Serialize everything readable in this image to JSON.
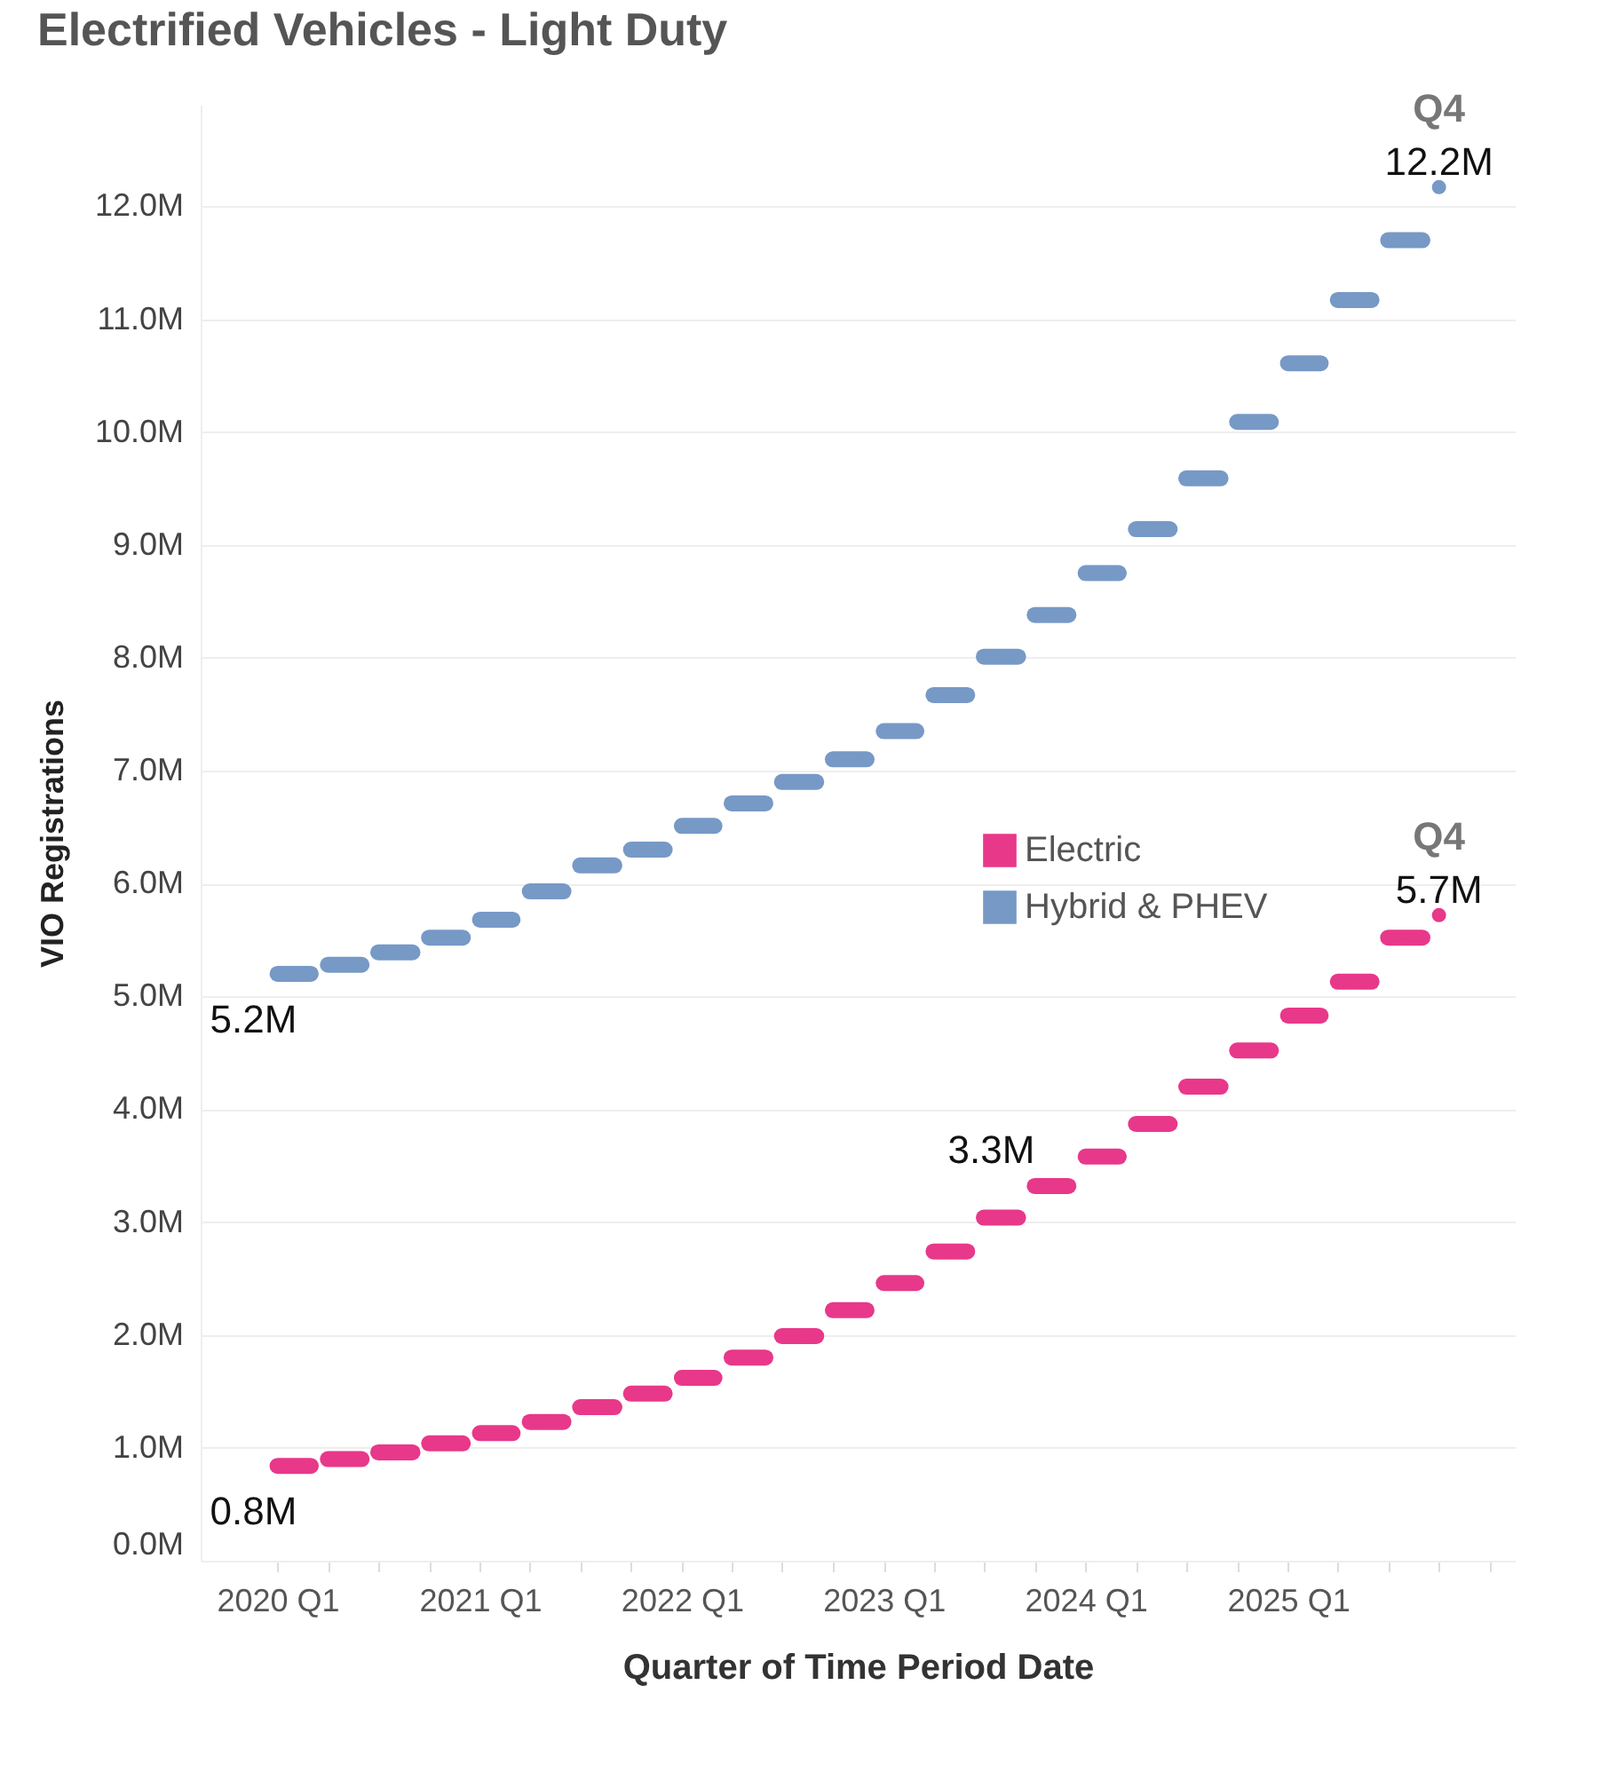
{
  "chart_data": {
    "type": "line",
    "title": "Electrified Vehicles - Light Duty",
    "xlabel": "Quarter of Time Period Date",
    "ylabel": "VIO Registrations",
    "x": [
      "2020-01",
      "2020-02",
      "2020-03",
      "2020-04",
      "2020-05",
      "2020-06",
      "2020-07",
      "2020-08",
      "2020-09",
      "2020-10",
      "2020-11",
      "2020-12",
      "2021-01",
      "2021-02",
      "2021-03",
      "2021-04",
      "2021-05",
      "2021-06",
      "2021-07",
      "2021-08",
      "2021-09",
      "2021-10",
      "2021-11",
      "2021-12",
      "2022-01",
      "2022-02",
      "2022-03",
      "2022-04",
      "2022-05",
      "2022-06",
      "2022-07",
      "2022-08",
      "2022-09",
      "2022-10",
      "2022-11",
      "2022-12",
      "2023-01",
      "2023-02",
      "2023-03",
      "2023-04",
      "2023-05",
      "2023-06",
      "2023-07",
      "2023-08",
      "2023-09",
      "2023-10",
      "2023-11",
      "2023-12",
      "2024-01",
      "2024-02",
      "2024-03",
      "2024-04",
      "2024-05",
      "2024-06",
      "2024-07",
      "2024-08",
      "2024-09",
      "2024-10",
      "2024-11",
      "2024-12",
      "2025-01",
      "2025-02",
      "2025-03",
      "2025-04",
      "2025-05",
      "2025-06",
      "2025-07",
      "2025-08",
      "2025-09"
    ],
    "series": [
      {
        "name": "Electric",
        "color": "#e8388a",
        "values": [
          0.84,
          0.84,
          0.84,
          0.9,
          0.9,
          0.9,
          0.96,
          0.96,
          0.96,
          1.04,
          1.04,
          1.04,
          1.13,
          1.13,
          1.13,
          1.23,
          1.23,
          1.23,
          1.36,
          1.36,
          1.36,
          1.48,
          1.48,
          1.48,
          1.62,
          1.62,
          1.62,
          1.8,
          1.8,
          1.8,
          1.99,
          1.99,
          1.99,
          2.22,
          2.22,
          2.22,
          2.46,
          2.46,
          2.46,
          2.74,
          2.74,
          2.74,
          3.04,
          3.04,
          3.04,
          3.32,
          3.32,
          3.32,
          3.58,
          3.58,
          3.58,
          3.87,
          3.87,
          3.87,
          4.2,
          4.2,
          4.2,
          4.52,
          4.52,
          4.52,
          4.83,
          4.83,
          4.83,
          5.13,
          5.13,
          5.13,
          5.52,
          5.52,
          5.52
        ]
      },
      {
        "name": "Hybrid & PHEV",
        "color": "#7799c6",
        "values": [
          5.2,
          5.2,
          5.2,
          5.28,
          5.28,
          5.28,
          5.39,
          5.39,
          5.39,
          5.52,
          5.52,
          5.52,
          5.68,
          5.68,
          5.68,
          5.93,
          5.93,
          5.93,
          6.16,
          6.16,
          6.16,
          6.3,
          6.3,
          6.3,
          6.51,
          6.51,
          6.51,
          6.71,
          6.71,
          6.71,
          6.9,
          6.9,
          6.9,
          7.1,
          7.1,
          7.1,
          7.35,
          7.35,
          7.35,
          7.67,
          7.67,
          7.67,
          8.01,
          8.01,
          8.01,
          8.38,
          8.38,
          8.38,
          8.75,
          8.75,
          8.75,
          9.14,
          9.14,
          9.14,
          9.59,
          9.59,
          9.59,
          10.09,
          10.09,
          10.09,
          10.61,
          10.61,
          10.61,
          11.17,
          11.17,
          11.17,
          11.7,
          11.7,
          11.7
        ]
      },
      {
        "type": "scatter",
        "color": "#e8388a",
        "x": [
          "2025-10"
        ],
        "values": [
          5.72
        ]
      },
      {
        "type": "scatter",
        "color": "#7799c6",
        "x": [
          "2025-10"
        ],
        "values": [
          12.17
        ]
      }
    ],
    "xlim": [
      "2019-08-15",
      "2026-02-15"
    ],
    "xticks": [
      {
        "value": "2020-01",
        "label": "2020 Q1"
      },
      {
        "value": "2020-04",
        "label": null
      },
      {
        "value": "2020-07",
        "label": null
      },
      {
        "value": "2020-10",
        "label": null
      },
      {
        "value": "2021-01",
        "label": "2021 Q1"
      },
      {
        "value": "2021-04",
        "label": null
      },
      {
        "value": "2021-07",
        "label": null
      },
      {
        "value": "2021-10",
        "label": null
      },
      {
        "value": "2022-01",
        "label": "2022 Q1"
      },
      {
        "value": "2022-04",
        "label": null
      },
      {
        "value": "2022-07",
        "label": null
      },
      {
        "value": "2022-10",
        "label": null
      },
      {
        "value": "2023-01",
        "label": "2023 Q1"
      },
      {
        "value": "2023-04",
        "label": null
      },
      {
        "value": "2023-07",
        "label": null
      },
      {
        "value": "2023-10",
        "label": null
      },
      {
        "value": "2024-01",
        "label": "2024 Q1"
      },
      {
        "value": "2024-04",
        "label": null
      },
      {
        "value": "2024-07",
        "label": null
      },
      {
        "value": "2024-10",
        "label": null
      },
      {
        "value": "2025-01",
        "label": "2025 Q1"
      },
      {
        "value": "2025-04",
        "label": null
      },
      {
        "value": "2025-07",
        "label": null
      },
      {
        "value": "2025-10",
        "label": null
      },
      {
        "value": "2026-01",
        "label": null
      }
    ],
    "ylim": [
      0,
      12.9
    ],
    "yticks": [
      {
        "value": 0,
        "label": "0.0M"
      },
      {
        "value": 1,
        "label": "1.0M"
      },
      {
        "value": 2,
        "label": "2.0M"
      },
      {
        "value": 3,
        "label": "3.0M"
      },
      {
        "value": 4,
        "label": "4.0M"
      },
      {
        "value": 5,
        "label": "5.0M"
      },
      {
        "value": 6,
        "label": "6.0M"
      },
      {
        "value": 7,
        "label": "7.0M"
      },
      {
        "value": 8,
        "label": "8.0M"
      },
      {
        "value": 9,
        "label": "9.0M"
      },
      {
        "value": 10,
        "label": "10.0M"
      },
      {
        "value": 11,
        "label": "11.0M"
      },
      {
        "value": 12,
        "label": "12.0M"
      }
    ],
    "grid": "y",
    "legend": "right",
    "marker": "circle",
    "line_style": "solid",
    "annotations": [
      {
        "text": "5.2M",
        "x": "2020-01",
        "y": 5.2
      },
      {
        "text": "0.8M",
        "x": "2020-01",
        "y": 0.84
      },
      {
        "text": "3.3M",
        "x": "2023-10",
        "y": 3.32
      },
      {
        "text": "Q4",
        "x": "2025-10",
        "y": 12.17
      },
      {
        "text": "12.2M",
        "x": "2025-10",
        "y": 12.17
      },
      {
        "text": "Q4",
        "x": "2025-10",
        "y": 5.72
      },
      {
        "text": "5.7M",
        "x": "2025-10",
        "y": 5.72
      }
    ]
  }
}
